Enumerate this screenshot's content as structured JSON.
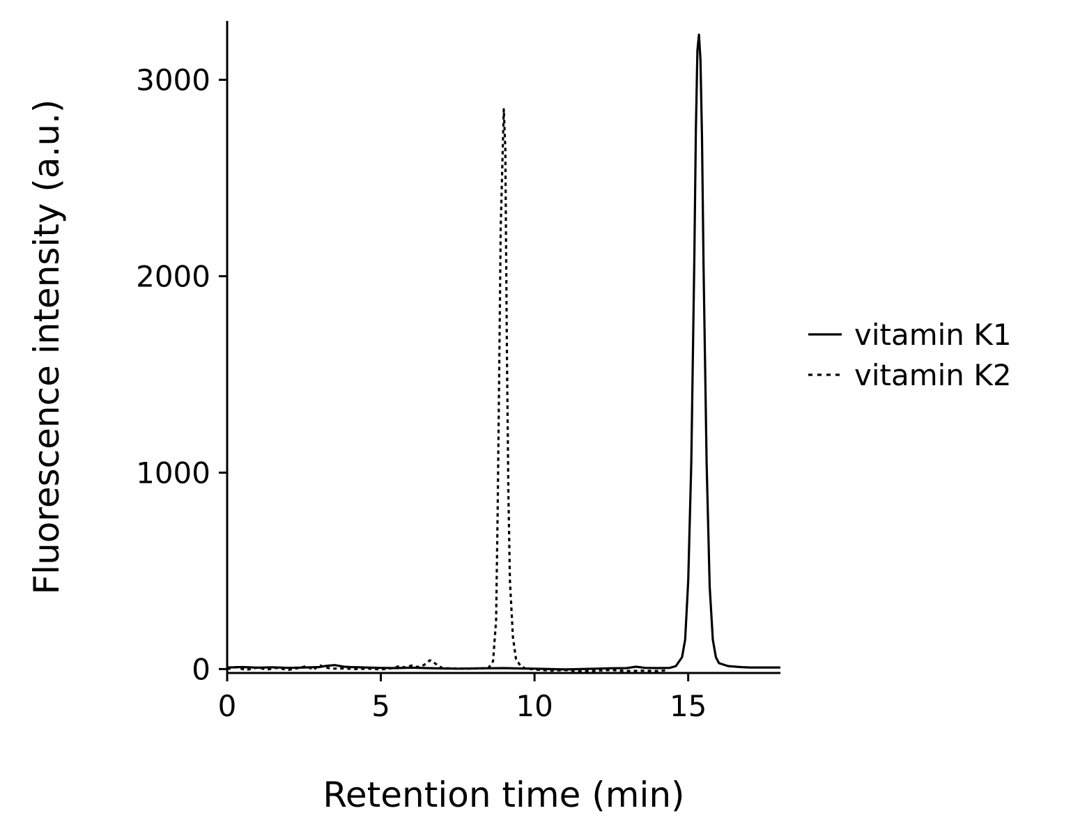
{
  "chart_data": {
    "type": "line",
    "xlabel": "Retention time (min)",
    "ylabel": "Fluorescence intensity (a.u.)",
    "xlim": [
      0,
      18
    ],
    "ylim": [
      -20,
      3300
    ],
    "xticks": [
      0,
      5,
      10,
      15
    ],
    "yticks": [
      0,
      1000,
      2000,
      3000
    ],
    "grid": false,
    "legend_position": "right",
    "series": [
      {
        "name": "vitamin K1",
        "style": "solid",
        "color": "#000000",
        "points": [
          [
            0,
            8
          ],
          [
            0.5,
            10
          ],
          [
            1,
            7
          ],
          [
            1.5,
            9
          ],
          [
            2,
            6
          ],
          [
            2.5,
            8
          ],
          [
            3,
            10
          ],
          [
            3.2,
            16
          ],
          [
            3.5,
            20
          ],
          [
            3.8,
            12
          ],
          [
            4,
            10
          ],
          [
            4.5,
            8
          ],
          [
            5,
            6
          ],
          [
            5.5,
            5
          ],
          [
            6,
            7
          ],
          [
            6.5,
            5
          ],
          [
            7,
            3
          ],
          [
            7.5,
            2
          ],
          [
            8,
            3
          ],
          [
            8.5,
            4
          ],
          [
            9,
            5
          ],
          [
            9.5,
            3
          ],
          [
            10,
            2
          ],
          [
            10.5,
            0
          ],
          [
            11,
            -2
          ],
          [
            11.5,
            0
          ],
          [
            12,
            2
          ],
          [
            12.5,
            4
          ],
          [
            13,
            5
          ],
          [
            13.3,
            12
          ],
          [
            13.6,
            6
          ],
          [
            14,
            5
          ],
          [
            14.4,
            6
          ],
          [
            14.6,
            15
          ],
          [
            14.8,
            60
          ],
          [
            14.9,
            150
          ],
          [
            15.0,
            450
          ],
          [
            15.1,
            1050
          ],
          [
            15.2,
            2100
          ],
          [
            15.25,
            2750
          ],
          [
            15.3,
            3150
          ],
          [
            15.35,
            3230
          ],
          [
            15.4,
            3100
          ],
          [
            15.45,
            2700
          ],
          [
            15.5,
            2050
          ],
          [
            15.6,
            1050
          ],
          [
            15.7,
            420
          ],
          [
            15.8,
            150
          ],
          [
            15.9,
            60
          ],
          [
            16,
            30
          ],
          [
            16.3,
            15
          ],
          [
            16.7,
            10
          ],
          [
            17,
            8
          ],
          [
            18,
            8
          ]
        ]
      },
      {
        "name": "vitamin K2",
        "style": "dotted",
        "color": "#000000",
        "points": [
          [
            0,
            0
          ],
          [
            0.3,
            10
          ],
          [
            0.6,
            -5
          ],
          [
            1,
            8
          ],
          [
            1.3,
            -3
          ],
          [
            1.6,
            6
          ],
          [
            2,
            -4
          ],
          [
            2.3,
            5
          ],
          [
            2.6,
            15
          ],
          [
            2.8,
            -5
          ],
          [
            3,
            20
          ],
          [
            3.2,
            8
          ],
          [
            3.4,
            2
          ],
          [
            3.8,
            3
          ],
          [
            4.2,
            0
          ],
          [
            4.6,
            2
          ],
          [
            5,
            -2
          ],
          [
            5.4,
            5
          ],
          [
            5.6,
            15
          ],
          [
            5.8,
            8
          ],
          [
            6,
            18
          ],
          [
            6.2,
            10
          ],
          [
            6.4,
            20
          ],
          [
            6.6,
            45
          ],
          [
            6.8,
            25
          ],
          [
            7,
            5
          ],
          [
            7.4,
            3
          ],
          [
            7.8,
            2
          ],
          [
            8.2,
            3
          ],
          [
            8.5,
            5
          ],
          [
            8.65,
            40
          ],
          [
            8.75,
            250
          ],
          [
            8.8,
            800
          ],
          [
            8.85,
            1500
          ],
          [
            8.9,
            2250
          ],
          [
            8.95,
            2550
          ],
          [
            9.0,
            2850
          ],
          [
            9.05,
            2650
          ],
          [
            9.1,
            1650
          ],
          [
            9.15,
            900
          ],
          [
            9.2,
            450
          ],
          [
            9.3,
            160
          ],
          [
            9.4,
            50
          ],
          [
            9.55,
            15
          ],
          [
            9.7,
            3
          ],
          [
            10,
            -2
          ],
          [
            10.5,
            -8
          ],
          [
            11,
            -5
          ],
          [
            11.5,
            -12
          ],
          [
            12,
            -8
          ],
          [
            12.5,
            -5
          ],
          [
            13,
            -10
          ],
          [
            13.5,
            -8
          ],
          [
            14,
            -10
          ],
          [
            14.3,
            -6
          ]
        ]
      }
    ]
  }
}
